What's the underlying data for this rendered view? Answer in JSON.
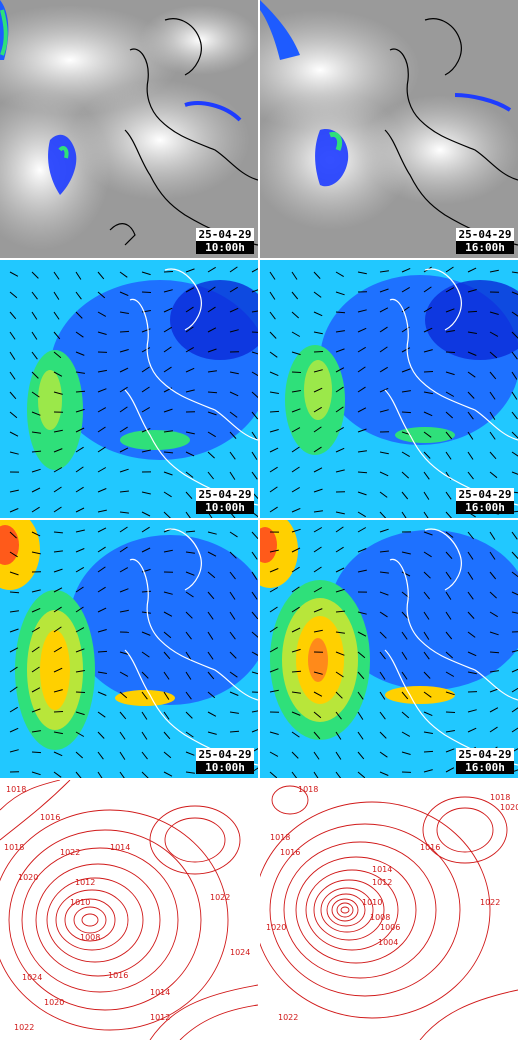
{
  "rows": [
    {
      "kind": "satellite",
      "panels": [
        {
          "date": "25-04-29",
          "time": "10:00h"
        },
        {
          "date": "25-04-29",
          "time": "16:00h"
        }
      ]
    },
    {
      "kind": "wind",
      "panels": [
        {
          "date": "25-04-29",
          "time": "10:00h"
        },
        {
          "date": "25-04-29",
          "time": "16:00h"
        }
      ]
    },
    {
      "kind": "gust",
      "panels": [
        {
          "date": "25-04-29",
          "time": "10:00h"
        },
        {
          "date": "25-04-29",
          "time": "16:00h"
        }
      ]
    },
    {
      "kind": "pressure",
      "panels": [
        {
          "isobar_labels": [
            "1018",
            "1016",
            "1018",
            "1020",
            "1022",
            "1014",
            "1012",
            "1010",
            "1008",
            "1024",
            "1022",
            "1020",
            "1016",
            "1014",
            "1012",
            "1022",
            "1024"
          ]
        },
        {
          "isobar_labels": [
            "1018",
            "1016",
            "1014",
            "1012",
            "1010",
            "1008",
            "1006",
            "1004",
            "1018",
            "1020",
            "1022",
            "1018",
            "1020",
            "1022",
            "1016"
          ]
        }
      ]
    }
  ],
  "colors": {
    "coastline": "#ffffff",
    "satellite_cloud": "#dcdcdc",
    "wind_low": "#1e5bff",
    "wind_mid": "#21d1ff",
    "wind_high": "#2fe07a",
    "gust_strong": "#ffd000",
    "gust_max": "#ff5a1a",
    "isobar": "#d01818"
  }
}
